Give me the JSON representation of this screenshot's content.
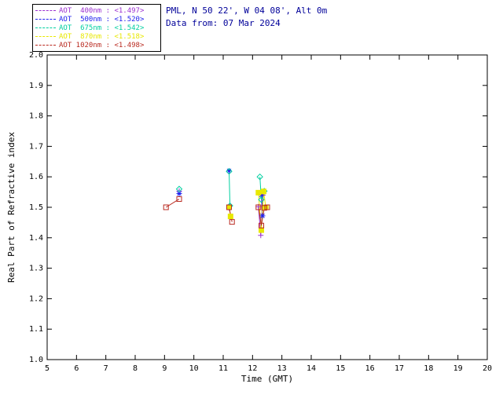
{
  "header": {
    "line1": "PML, N 50 22', W 04 08', Alt 0m",
    "line2": "Data from: 07 Mar 2024",
    "color": "#000099"
  },
  "chart_data": {
    "type": "scatter",
    "title": "",
    "xlabel": "Time (GMT)",
    "ylabel": "Real Part of Refractive index",
    "xlim": [
      5,
      20
    ],
    "ylim": [
      1.0,
      2.0
    ],
    "xticks": [
      5,
      6,
      7,
      8,
      9,
      10,
      11,
      12,
      13,
      14,
      15,
      16,
      17,
      18,
      19,
      20
    ],
    "yticks": [
      1.0,
      1.1,
      1.2,
      1.3,
      1.4,
      1.5,
      1.6,
      1.7,
      1.8,
      1.9,
      2.0
    ],
    "grid": false,
    "legend_position": "top-left",
    "frame_color": "#000000",
    "series": [
      {
        "name": "AOT 400nm",
        "mean": 1.497,
        "legend_label": "AOT  400nm : <1.497>",
        "color": "#9b30d0",
        "marker": "plus",
        "points": [
          [
            9.5,
            1.553
          ],
          [
            11.2,
            1.498
          ],
          [
            12.2,
            1.502
          ],
          [
            12.28,
            1.408
          ],
          [
            12.35,
            1.54
          ]
        ]
      },
      {
        "name": "AOT 500nm",
        "mean": 1.52,
        "legend_label": "AOT  500nm : <1.520>",
        "color": "#2020ee",
        "marker": "asterisk",
        "points": [
          [
            9.5,
            1.545
          ],
          [
            11.2,
            1.62
          ],
          [
            12.3,
            1.54
          ],
          [
            12.34,
            1.472
          ]
        ]
      },
      {
        "name": "AOT 675nm",
        "mean": 1.542,
        "legend_label": "AOT  675nm : <1.542>",
        "color": "#00cfa0",
        "marker": "diamond",
        "points": [
          [
            9.5,
            1.56
          ],
          [
            11.2,
            1.618
          ],
          [
            11.23,
            1.505
          ],
          [
            12.25,
            1.6
          ],
          [
            12.3,
            1.525
          ],
          [
            12.4,
            1.553
          ]
        ]
      },
      {
        "name": "AOT 870nm",
        "mean": 1.518,
        "legend_label": "AOT  870nm : <1.518>",
        "color": "#e8e800",
        "marker": "square-filled",
        "points": [
          [
            11.2,
            1.5
          ],
          [
            11.25,
            1.47
          ],
          [
            12.2,
            1.548
          ],
          [
            12.3,
            1.425
          ],
          [
            12.38,
            1.552
          ],
          [
            12.45,
            1.5
          ]
        ]
      },
      {
        "name": "AOT 1020nm",
        "mean": 1.498,
        "legend_label": "AOT 1020nm : <1.498>",
        "color": "#b92a20",
        "marker": "square",
        "points": [
          [
            9.05,
            1.5
          ],
          [
            9.5,
            1.527
          ],
          [
            11.2,
            1.5
          ],
          [
            11.3,
            1.452
          ],
          [
            12.2,
            1.5
          ],
          [
            12.3,
            1.44
          ],
          [
            12.4,
            1.498
          ],
          [
            12.5,
            1.5
          ]
        ]
      }
    ]
  }
}
